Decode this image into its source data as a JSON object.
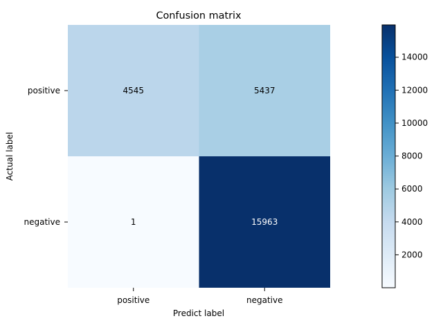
{
  "chart_data": {
    "type": "heatmap",
    "title": "Confusion matrix",
    "xlabel": "Predict label",
    "ylabel": "Actual label",
    "x_categories": [
      "positive",
      "negative"
    ],
    "y_categories": [
      "positive",
      "negative"
    ],
    "values": [
      [
        4545,
        5437
      ],
      [
        1,
        15963
      ]
    ],
    "colormap": "Blues",
    "colorbar": {
      "min": 1,
      "max": 15963,
      "ticks": [
        2000,
        4000,
        6000,
        8000,
        10000,
        12000,
        14000
      ]
    },
    "text_colors": {
      "dark_cell": "#ffffff",
      "light_cell": "#000000"
    }
  }
}
